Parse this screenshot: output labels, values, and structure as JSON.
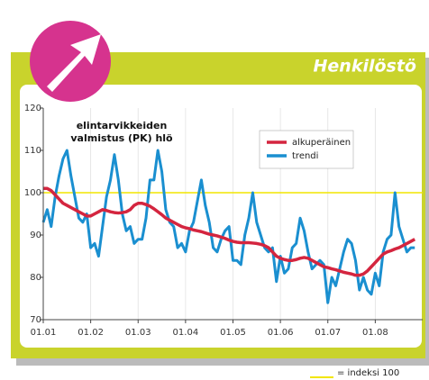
{
  "header": "Henkilöstö",
  "chart_data": {
    "type": "line",
    "annotation": [
      "elintarvikkeiden",
      "valmistus (PK) hlö"
    ],
    "x": [
      0,
      1,
      2,
      3,
      4,
      5,
      6,
      7,
      8,
      9,
      10,
      11,
      12,
      13,
      14,
      15,
      16,
      17,
      18,
      19,
      20,
      21,
      22,
      23,
      24,
      25,
      26,
      27,
      28,
      29,
      30,
      31,
      32,
      33,
      34,
      35,
      36,
      37,
      38,
      39,
      40,
      41,
      42,
      43,
      44,
      45,
      46,
      47,
      48,
      49,
      50,
      51,
      52,
      53,
      54,
      55,
      56,
      57,
      58,
      59,
      60,
      61,
      62,
      63,
      64,
      65,
      66,
      67,
      68,
      69,
      70,
      71,
      72,
      73,
      74,
      75,
      76,
      77,
      78,
      79,
      80,
      81,
      82,
      83,
      84,
      85,
      86,
      87,
      88,
      89,
      90,
      91,
      92,
      93,
      94
    ],
    "series": [
      {
        "name": "alkuperäinen",
        "color": "#d4253f",
        "values": [
          101,
          101,
          100.5,
          99.5,
          98.5,
          97.5,
          97,
          96.5,
          96,
          95.5,
          95,
          94.5,
          94.5,
          95,
          95.5,
          96,
          95.8,
          95.5,
          95.3,
          95.2,
          95.3,
          95.5,
          96,
          97,
          97.5,
          97.5,
          97.2,
          96.8,
          96.2,
          95.5,
          94.8,
          94,
          93.5,
          93,
          92.5,
          92,
          91.7,
          91.5,
          91.2,
          91,
          90.8,
          90.5,
          90.2,
          90,
          89.8,
          89.5,
          89.2,
          88.8,
          88.5,
          88.3,
          88.2,
          88.2,
          88.2,
          88.1,
          88,
          87.8,
          87.5,
          87,
          86,
          85,
          84.5,
          84.2,
          84,
          84,
          84.2,
          84.5,
          84.7,
          84.5,
          84,
          83.5,
          83,
          82.5,
          82.3,
          82,
          81.8,
          81.5,
          81.2,
          81,
          80.8,
          80.5,
          80.5,
          80.8,
          81.5,
          82.5,
          83.5,
          84.5,
          85.5,
          86,
          86.3,
          86.7,
          87,
          87.5,
          88,
          88.5,
          89
        ]
      },
      {
        "name": "trendi",
        "color": "#1a8fd0",
        "values": [
          93,
          96,
          92,
          99,
          104,
          108,
          110,
          104,
          99,
          94,
          93,
          95,
          87,
          88,
          85,
          92,
          99,
          103,
          109,
          103,
          95,
          91,
          92,
          88,
          89,
          89,
          94,
          103,
          103,
          110,
          105,
          96,
          93,
          92,
          87,
          88,
          86,
          91,
          93,
          98,
          103,
          97,
          93,
          87,
          86,
          89,
          91,
          92,
          84,
          84,
          83,
          90,
          94,
          100,
          93,
          90,
          87,
          86,
          87,
          79,
          85,
          81,
          82,
          87,
          88,
          94,
          91,
          86,
          82,
          83,
          84,
          83,
          74,
          80,
          78,
          82,
          86,
          89,
          88,
          84,
          77,
          80,
          77,
          76,
          81,
          78,
          86,
          89,
          90,
          100,
          92,
          89,
          86,
          87,
          87
        ]
      }
    ],
    "xlim": [
      0,
      96
    ],
    "xticks": [
      {
        "value": 0,
        "label": "01.01"
      },
      {
        "value": 12,
        "label": "01.02"
      },
      {
        "value": 24,
        "label": "01.03"
      },
      {
        "value": 36,
        "label": "01.04"
      },
      {
        "value": 48,
        "label": "01.05"
      },
      {
        "value": 60,
        "label": "01.06"
      },
      {
        "value": 72,
        "label": "01.07"
      },
      {
        "value": 84,
        "label": "01.08"
      }
    ],
    "ylim": [
      70,
      120
    ],
    "yticks": [
      70,
      80,
      90,
      100,
      110,
      120
    ],
    "reference_line": {
      "value": 100,
      "color": "#f2e600",
      "label": "= indeksi 100"
    },
    "grid": true
  }
}
